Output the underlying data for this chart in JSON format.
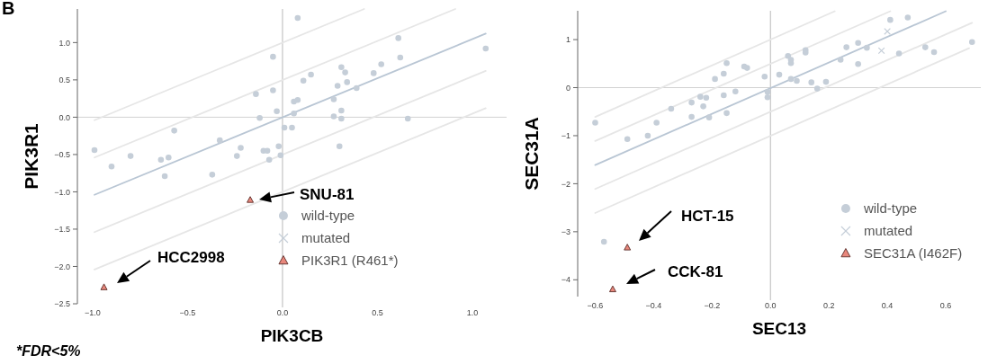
{
  "chart_data": [
    {
      "type": "scatter",
      "xlabel": "PIK3CB",
      "ylabel": "PIK3R1",
      "xlim": [
        -1.08,
        1.18
      ],
      "ylim": [
        -2.5,
        1.45
      ],
      "xticks": [
        {
          "value": -1,
          "label": "−1.0"
        },
        {
          "value": -0.5,
          "label": "−0.5"
        },
        {
          "value": 0,
          "label": "0.0"
        },
        {
          "value": 0.5,
          "label": "0.5"
        },
        {
          "value": 1,
          "label": "1.0"
        }
      ],
      "yticks": [
        {
          "value": -2.5,
          "label": "−2.5"
        },
        {
          "value": -2,
          "label": "−2.0"
        },
        {
          "value": -1.5,
          "label": "−1.5"
        },
        {
          "value": -1,
          "label": "−1.0"
        },
        {
          "value": -0.5,
          "label": "−0.5"
        },
        {
          "value": 0,
          "label": "0.0"
        },
        {
          "value": 0.5,
          "label": "0.5"
        },
        {
          "value": 1,
          "label": "1.0"
        }
      ],
      "ref_lines": [
        {
          "axis": "x",
          "value": 0,
          "color": "#c4c4c4"
        },
        {
          "axis": "y",
          "value": 0,
          "color": "#d2d2d2"
        }
      ],
      "legend": "bottom right",
      "annotations": [
        "B",
        "*FDR<5%",
        "SNU-81",
        "HCC2998"
      ],
      "series": [
        {
          "type": "line",
          "color": "#e6e6e6",
          "x": [
            -0.99,
            0.43
          ],
          "values": [
            -0.04,
            1.45
          ]
        },
        {
          "type": "line",
          "color": "#e6e6e6",
          "x": [
            -0.99,
            0.91
          ],
          "values": [
            -0.54,
            1.45
          ]
        },
        {
          "type": "line",
          "color": "#e6e6e6",
          "x": [
            -0.99,
            1.07
          ],
          "values": [
            -1.54,
            0.62
          ]
        },
        {
          "type": "line",
          "color": "#e6e6e6",
          "x": [
            -0.99,
            1.07
          ],
          "values": [
            -2.04,
            0.12
          ]
        },
        {
          "type": "line",
          "color": "#b9c6d4",
          "x": [
            -0.99,
            1.07
          ],
          "values": [
            -1.04,
            1.12
          ]
        },
        {
          "name": "wild-type",
          "color": "#c5ced8",
          "marker": "circle",
          "x": [
            -0.99,
            -0.9,
            -0.8,
            -0.64,
            -0.6,
            -0.62,
            -0.57,
            -0.37,
            -0.33,
            -0.24,
            -0.22,
            -0.14,
            -0.12,
            -0.1,
            -0.08,
            -0.07,
            -0.05,
            -0.05,
            -0.03,
            -0.02,
            0.08,
            0.01,
            0.05,
            -0.01,
            0.06,
            0.06,
            0.08,
            0.11,
            0.15,
            0.27,
            0.27,
            0.31,
            0.31,
            0.3,
            0.29,
            0.31,
            0.33,
            0.34,
            0.39,
            0.48,
            0.52,
            0.61,
            0.62,
            0.66,
            1.07
          ],
          "values": [
            -0.44,
            -0.66,
            -0.52,
            -0.57,
            -0.54,
            -0.79,
            -0.18,
            -0.77,
            -0.31,
            -0.52,
            -0.41,
            0.31,
            -0.01,
            -0.45,
            -0.45,
            -0.57,
            0.81,
            0.36,
            0.08,
            -0.39,
            1.33,
            -0.14,
            -0.14,
            -0.51,
            0.05,
            0.21,
            0.23,
            0.49,
            0.57,
            0.24,
            0.01,
            0.09,
            -0.02,
            -0.39,
            0.42,
            0.67,
            0.6,
            0.47,
            0.39,
            0.59,
            0.71,
            1.06,
            0.8,
            -0.02,
            0.92
          ]
        },
        {
          "name": "mutated",
          "color": "#c5ced8",
          "marker": "cross"
        },
        {
          "name": "PIK3R1 (R461*)",
          "color": "#e8877c",
          "marker": "triangle",
          "x": [
            -0.17,
            -0.94
          ],
          "values": [
            -1.11,
            -2.28
          ]
        }
      ]
    },
    {
      "type": "scatter",
      "xlabel": "SEC13",
      "ylabel": "SEC31A",
      "xlim": [
        -0.66,
        0.72
      ],
      "ylim": [
        -4.35,
        1.6
      ],
      "xticks": [
        {
          "value": -0.6,
          "label": "−0.6"
        },
        {
          "value": -0.4,
          "label": "−0.4"
        },
        {
          "value": -0.2,
          "label": "−0.2"
        },
        {
          "value": 0,
          "label": "0.0"
        },
        {
          "value": 0.2,
          "label": "0.2"
        },
        {
          "value": 0.4,
          "label": "0.4"
        },
        {
          "value": 0.6,
          "label": "0.6"
        }
      ],
      "yticks": [
        {
          "value": -4,
          "label": "−4"
        },
        {
          "value": -3,
          "label": "−3"
        },
        {
          "value": -2,
          "label": "−2"
        },
        {
          "value": -1,
          "label": "−1"
        },
        0,
        1
      ],
      "ref_lines": [
        {
          "axis": "x",
          "value": 0,
          "color": "#c4c4c4"
        },
        {
          "axis": "y",
          "value": 0,
          "color": "#d2d2d2"
        }
      ],
      "legend": "bottom right",
      "annotations": [
        "HCT-15",
        "CCK-81"
      ],
      "series": [
        {
          "type": "line",
          "color": "#e6e6e6",
          "x": [
            -0.6,
            0.22
          ],
          "values": [
            -0.61,
            1.59
          ]
        },
        {
          "type": "line",
          "color": "#e6e6e6",
          "x": [
            -0.6,
            0.41
          ],
          "values": [
            -1.11,
            1.59
          ]
        },
        {
          "type": "line",
          "color": "#e6e6e6",
          "x": [
            -0.6,
            0.69
          ],
          "values": [
            -2.11,
            1.35
          ]
        },
        {
          "type": "line",
          "color": "#e6e6e6",
          "x": [
            -0.6,
            0.68
          ],
          "values": [
            -2.61,
            0.82
          ]
        },
        {
          "type": "line",
          "color": "#b9c6d4",
          "x": [
            -0.6,
            0.6
          ],
          "values": [
            -1.61,
            1.59
          ]
        },
        {
          "name": "wild-type",
          "color": "#c5ced8",
          "marker": "circle",
          "x": [
            -0.6,
            -0.57,
            -0.49,
            -0.42,
            -0.39,
            -0.34,
            -0.27,
            -0.27,
            -0.24,
            -0.23,
            -0.22,
            -0.21,
            -0.19,
            -0.16,
            -0.16,
            -0.15,
            -0.15,
            -0.12,
            -0.09,
            -0.08,
            -0.02,
            -0.01,
            -0.01,
            0.03,
            0.06,
            0.07,
            0.07,
            0.07,
            0.09,
            0.12,
            0.12,
            0.14,
            0.16,
            0.19,
            0.24,
            0.26,
            0.3,
            0.3,
            0.33,
            0.41,
            0.44,
            0.47,
            0.53,
            0.56,
            0.69
          ],
          "values": [
            -0.73,
            -3.21,
            -1.07,
            -1,
            -0.73,
            -0.44,
            -0.31,
            -0.61,
            -0.19,
            -0.39,
            -0.21,
            -0.62,
            0.18,
            0.29,
            -0.16,
            0.51,
            -0.53,
            -0.08,
            0.44,
            0.41,
            0.23,
            -0.09,
            -0.2,
            0.27,
            0.66,
            0.51,
            0.58,
            0.18,
            0.14,
            0.78,
            0.73,
            0.11,
            -0.02,
            0.12,
            0.58,
            0.84,
            0.93,
            0.49,
            0.83,
            1.41,
            0.71,
            1.46,
            0.84,
            0.74,
            0.95
          ]
        },
        {
          "name": "mutated",
          "color": "#c5ced8",
          "marker": "cross",
          "x": [
            0.4,
            0.38
          ],
          "values": [
            1.17,
            0.77
          ]
        },
        {
          "name": "SEC31A (I462F)",
          "color": "#e8877c",
          "marker": "triangle",
          "x": [
            -0.49,
            -0.54
          ],
          "values": [
            -3.33,
            -4.2
          ]
        }
      ]
    }
  ]
}
